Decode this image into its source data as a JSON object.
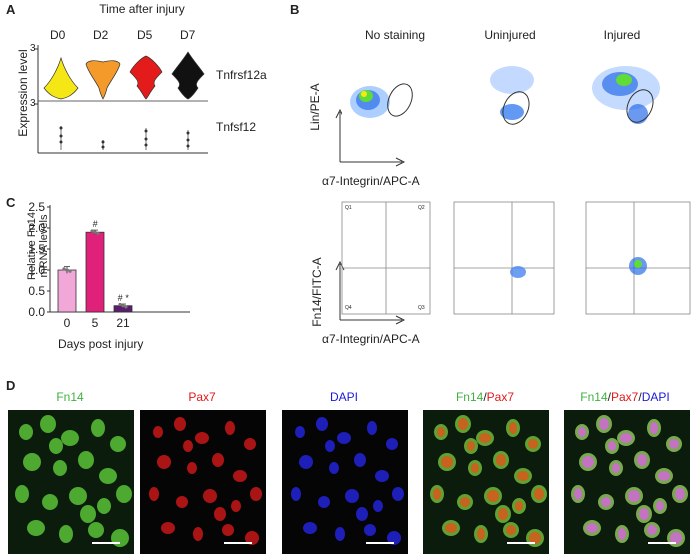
{
  "panels": {
    "a": "A",
    "b": "B",
    "c": "C",
    "d": "D"
  },
  "panelA": {
    "title": "Time after injury",
    "days": [
      "D0",
      "D2",
      "D5",
      "D7"
    ],
    "genes": [
      "Tnfrsf12a",
      "Tnfsf12"
    ],
    "ylabel": "Expression level",
    "tick3": "3",
    "colors": [
      "#f5e616",
      "#f39a2a",
      "#e41b1b",
      "#111111"
    ]
  },
  "panelB": {
    "top_titles": [
      "No staining",
      "Uninjured",
      "Injured"
    ],
    "top_ylabel": "Lin/PE-A",
    "top_xlabel": "α7-Integrin/APC-A",
    "bottom_ylabel": "Fn14/FITC-A",
    "bottom_xlabel": "α7-Integrin/APC-A",
    "quadrants": [
      "Q1",
      "Q2",
      "Q3",
      "Q4"
    ]
  },
  "chart_data": {
    "type": "bar",
    "categories": [
      "0",
      "5",
      "21"
    ],
    "values": [
      1.0,
      1.9,
      0.15
    ],
    "errors": [
      0.08,
      0.05,
      0.04
    ],
    "colors": [
      "#f1a8d8",
      "#e0217a",
      "#5c1d6e"
    ],
    "annotations": [
      "",
      "#",
      "# *"
    ],
    "ylabel": "Relative Fn14\nmRNA levels",
    "xlabel": "Days post injury",
    "ylim": [
      0,
      2.5
    ],
    "yticks": [
      "0.0",
      "0.5",
      "1.0",
      "1.5",
      "2.0",
      "2.5"
    ]
  },
  "panelD": {
    "labels": [
      {
        "parts": [
          {
            "text": "Fn14",
            "color": "#3fb23f"
          }
        ]
      },
      {
        "parts": [
          {
            "text": "Pax7",
            "color": "#e01a1a"
          }
        ]
      },
      {
        "parts": [
          {
            "text": "DAPI",
            "color": "#1a1ad6"
          }
        ]
      },
      {
        "parts": [
          {
            "text": "Fn14",
            "color": "#3fb23f"
          },
          {
            "text": "/",
            "color": "#222222"
          },
          {
            "text": "Pax7",
            "color": "#e01a1a"
          }
        ]
      },
      {
        "parts": [
          {
            "text": "Fn14",
            "color": "#3fb23f"
          },
          {
            "text": "/",
            "color": "#222222"
          },
          {
            "text": "Pax7",
            "color": "#e01a1a"
          },
          {
            "text": "/",
            "color": "#222222"
          },
          {
            "text": "DAPI",
            "color": "#1a1ad6"
          }
        ]
      }
    ]
  }
}
